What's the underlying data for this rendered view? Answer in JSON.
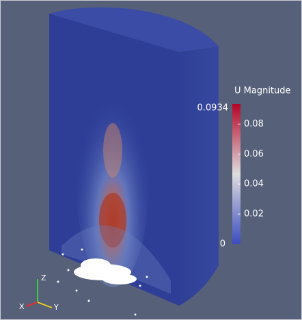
{
  "colorbar": {
    "title": "U Magnitude",
    "min": 0,
    "max": 0.0934,
    "ticks": [
      0.02,
      0.04,
      0.06,
      0.08
    ]
  },
  "axes_triad": {
    "z": "Z",
    "x": "X",
    "y": "Y"
  }
}
